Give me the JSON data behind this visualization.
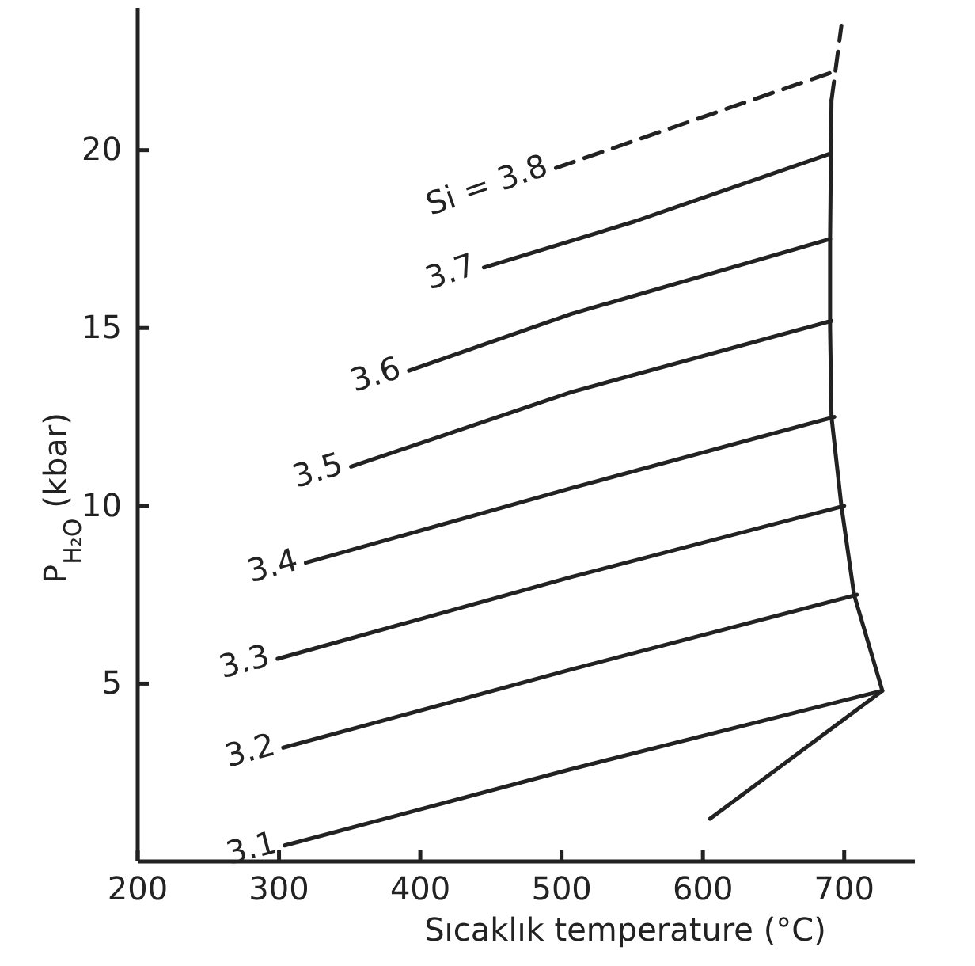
{
  "chart_data": {
    "type": "line",
    "xlabel": "Sıcaklık  temperature (°C)",
    "ylabel": "P$_{H₂O}$ (kbar)",
    "xlim": [
      200,
      750
    ],
    "xticks": [
      200,
      300,
      400,
      500,
      600,
      700
    ],
    "ylim": [
      0,
      24
    ],
    "yticks": [
      5,
      10,
      15,
      20
    ],
    "line_style": "solid",
    "series": [
      {
        "name": "3.1",
        "color": "#222222",
        "x": [
          304,
          507,
          727
        ],
        "values": [
          0.45,
          2.6,
          4.8
        ]
      },
      {
        "name": "3.2",
        "color": "#222222",
        "x": [
          303,
          507,
          709
        ],
        "values": [
          3.2,
          5.4,
          7.5
        ]
      },
      {
        "name": "3.3",
        "color": "#222222",
        "x": [
          299,
          507,
          700
        ],
        "values": [
          5.7,
          8.0,
          10.0
        ]
      },
      {
        "name": "3.4",
        "color": "#222222",
        "x": [
          319,
          507,
          693
        ],
        "values": [
          8.4,
          10.5,
          12.5
        ]
      },
      {
        "name": "3.5",
        "color": "#222222",
        "x": [
          351,
          507,
          691
        ],
        "values": [
          11.1,
          13.2,
          15.2
        ]
      },
      {
        "name": "3.6",
        "color": "#222222",
        "x": [
          392,
          507,
          690
        ],
        "values": [
          13.8,
          15.4,
          17.5
        ]
      },
      {
        "name": "3.7",
        "color": "#222222",
        "x": [
          445,
          552,
          690
        ],
        "values": [
          16.7,
          18.0,
          19.9
        ]
      },
      {
        "name": "Si = 3.8",
        "color": "#222222",
        "line_style": "dashed",
        "x": [
          496,
          692
        ],
        "values": [
          19.5,
          22.2
        ]
      },
      {
        "color": "#222222",
        "x": [
          691,
          690,
          690,
          691,
          698,
          707,
          727,
          605
        ],
        "values": [
          21.4,
          17.5,
          15,
          12.5,
          10,
          7.5,
          4.8,
          1.2
        ]
      },
      {
        "color": "#222222",
        "line_style": "dashed",
        "x": [
          691,
          698
        ],
        "values": [
          21.4,
          23.5
        ]
      }
    ]
  }
}
